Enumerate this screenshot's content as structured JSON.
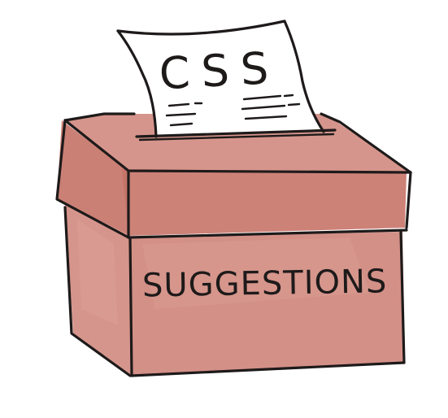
{
  "paper": {
    "title": "CSS"
  },
  "box": {
    "label": "SUGGESTIONS"
  },
  "colors": {
    "box_fill": "#c97b70",
    "box_fill_light": "#d99a90",
    "paper_fill": "#ffffff",
    "ink": "#1e1a1a"
  }
}
